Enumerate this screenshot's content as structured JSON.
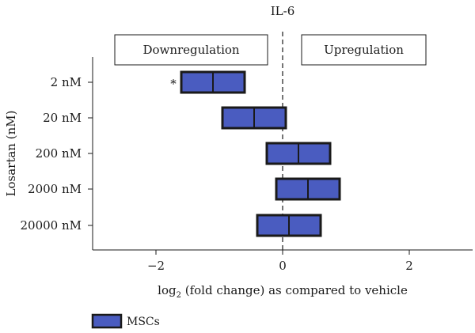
{
  "chart_data": {
    "type": "box",
    "title": "IL-6",
    "xlabel_main": "log",
    "xlabel_sub": "2",
    "xlabel_rest": " (fold change) as compared to vehicle",
    "ylabel": "Losartan (nM)",
    "xlim": [
      -3,
      3
    ],
    "xticks": [
      -2,
      0,
      2
    ],
    "xtick_labels": [
      "−2",
      "0",
      "2"
    ],
    "regions": {
      "left": "Downregulation",
      "right": "Upregulation"
    },
    "categories": [
      "2 nM",
      "20 nM",
      "200 nM",
      "2000 nM",
      "20000 nM"
    ],
    "series": [
      {
        "name": "MSCs",
        "color": "#4a5cc0",
        "boxes": [
          {
            "min": -1.6,
            "median": -1.1,
            "max": -0.6,
            "annotation": "*"
          },
          {
            "min": -0.95,
            "median": -0.45,
            "max": 0.05,
            "annotation": ""
          },
          {
            "min": -0.25,
            "median": 0.25,
            "max": 0.75,
            "annotation": ""
          },
          {
            "min": -0.1,
            "median": 0.4,
            "max": 0.9,
            "annotation": ""
          },
          {
            "min": -0.4,
            "median": 0.1,
            "max": 0.6,
            "annotation": ""
          }
        ]
      }
    ],
    "legend": {
      "position": "bottom-left",
      "label": "MSCs"
    }
  }
}
